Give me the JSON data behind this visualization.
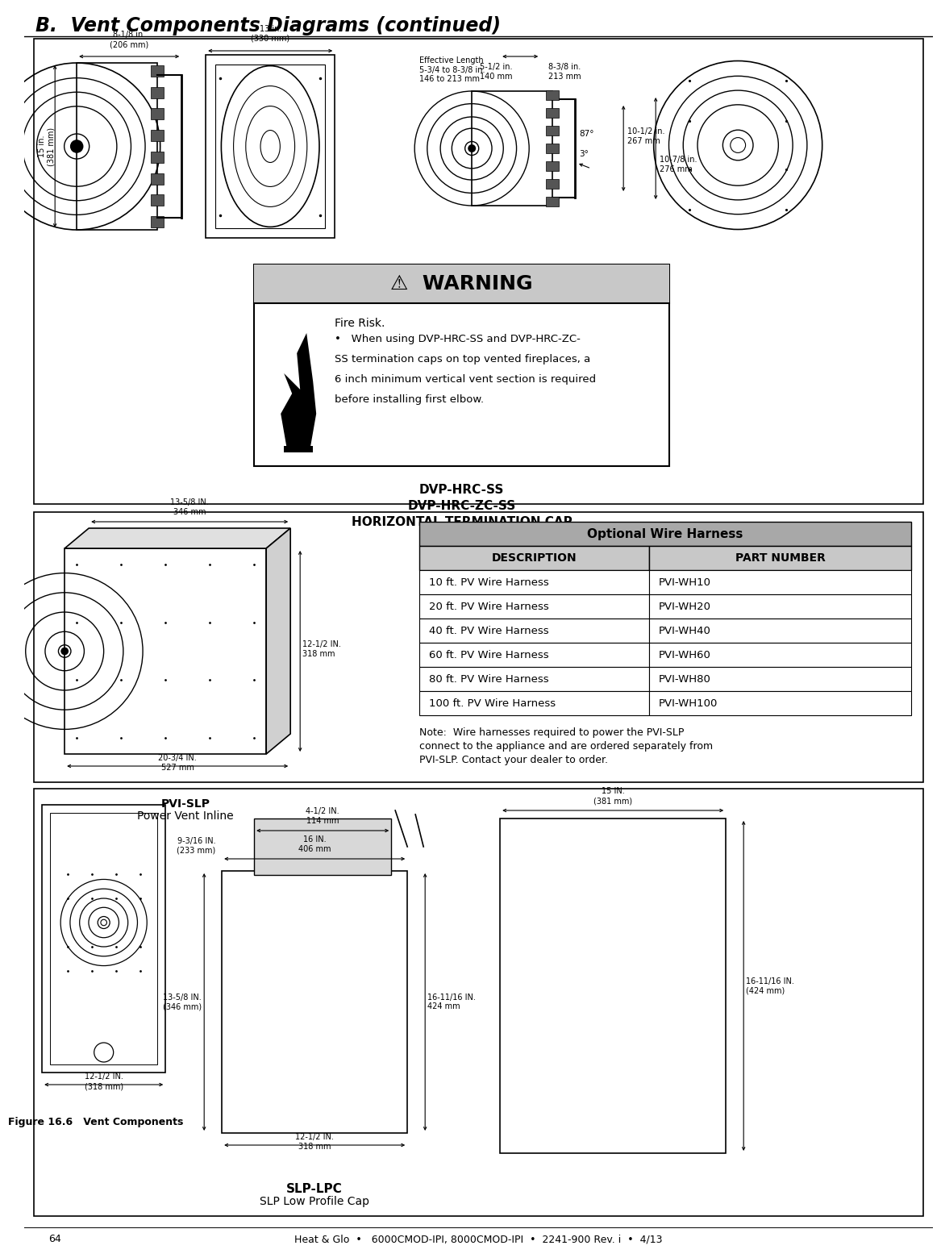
{
  "title": "B.  Vent Components Diagrams (continued)",
  "footer_num": "64",
  "footer_center": "Heat & Glo  •   6000CMOD-IPI, 8000CMOD-IPI  •  2241-900 Rev. i  •  4/13",
  "warning_title": "⚠  WARNING",
  "warning_fire_risk": "Fire Risk.",
  "warning_line1": "•   When using DVP-HRC-SS and DVP-HRC-ZC-",
  "warning_line2": "SS termination caps on top vented fireplaces, a",
  "warning_line3": "6 inch minimum vertical vent section is required",
  "warning_line4": "before installing first elbow.",
  "dvp_label1": "DVP-HRC-SS",
  "dvp_label2": "DVP-HRC-ZC-SS",
  "dvp_label3": "HORIZONTAL TERMINATION CAP",
  "table_header1": "Optional Wire Harness",
  "table_col1": "DESCRIPTION",
  "table_col2": "PART NUMBER",
  "table_rows": [
    [
      "10 ft. PV Wire Harness",
      "PVI-WH10"
    ],
    [
      "20 ft. PV Wire Harness",
      "PVI-WH20"
    ],
    [
      "40 ft. PV Wire Harness",
      "PVI-WH40"
    ],
    [
      "60 ft. PV Wire Harness",
      "PVI-WH60"
    ],
    [
      "80 ft. PV Wire Harness",
      "PVI-WH80"
    ],
    [
      "100 ft. PV Wire Harness",
      "PVI-WH100"
    ]
  ],
  "pvi_label1": "PVI-SLP",
  "pvi_label2": "Power Vent Inline",
  "note_lines": [
    "Note:  Wire harnesses required to power the PVI-SLP",
    "connect to the appliance and are ordered separately from",
    "PVI-SLP. Contact your dealer to order."
  ],
  "slp_label1": "SLP-LPC",
  "slp_label2": "SLP Low Profile Cap",
  "fig_label": "Figure 16.6   Vent Components",
  "bg_color": "#ffffff"
}
